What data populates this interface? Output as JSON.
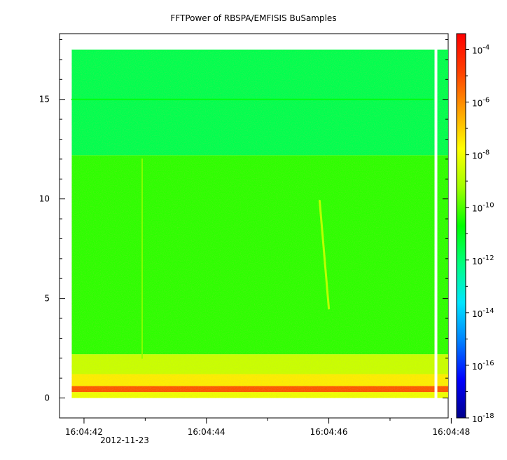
{
  "chart_data": {
    "type": "heatmap",
    "title": "FFTPower of RBSPA/EMFISIS  BuSamples",
    "xlabel": "",
    "ylabel": "",
    "date_label": "2012-11-23",
    "x_ticks": [
      "16:04:42",
      "16:04:44",
      "16:04:46",
      "16:04:48"
    ],
    "x_range_seconds": [
      41.6,
      47.95
    ],
    "data_x_range_seconds": [
      41.8,
      47.95
    ],
    "gap_x_seconds": 47.75,
    "y_ticks": [
      0,
      5,
      10,
      15
    ],
    "ylim": [
      -1,
      18.3
    ],
    "data_y_range": [
      0,
      17.5
    ],
    "colorbar": {
      "scale": "log",
      "range_exponent": [
        -18,
        -3.4
      ],
      "tick_labels": [
        {
          "base": "10",
          "exp": "-4",
          "value": -4
        },
        {
          "base": "10",
          "exp": "-6",
          "value": -6
        },
        {
          "base": "10",
          "exp": "-8",
          "value": -8
        },
        {
          "base": "10",
          "exp": "-10",
          "value": -10
        },
        {
          "base": "10",
          "exp": "-12",
          "value": -12
        },
        {
          "base": "10",
          "exp": "-14",
          "value": -14
        },
        {
          "base": "10",
          "exp": "-16",
          "value": -16
        },
        {
          "base": "10",
          "exp": "-18",
          "value": -18
        }
      ]
    },
    "spectral_bands": [
      {
        "y_from": 0,
        "y_to": 0.3,
        "power_exp": -8.0
      },
      {
        "y_from": 0.3,
        "y_to": 0.6,
        "power_exp": -5.2
      },
      {
        "y_from": 0.6,
        "y_to": 1.2,
        "power_exp": -7.5
      },
      {
        "y_from": 1.2,
        "y_to": 2.2,
        "power_exp": -8.6
      },
      {
        "y_from": 2.2,
        "y_to": 12.2,
        "power_exp": -10.3
      },
      {
        "y_from": 12.2,
        "y_to": 17.5,
        "power_exp": -11.6
      }
    ],
    "features": [
      {
        "kind": "line",
        "x0": 42.95,
        "y0": 2.0,
        "x1": 42.95,
        "y1": 12.0,
        "power_exp": -9.4
      },
      {
        "kind": "line",
        "x0": 45.85,
        "y0": 9.9,
        "x1": 46.0,
        "y1": 4.5,
        "power_exp": -8.6
      },
      {
        "kind": "line",
        "x0": 41.8,
        "y0": 15.0,
        "x1": 47.7,
        "y1": 15.0,
        "power_exp": -10.8
      }
    ],
    "colors": {
      "colormap": [
        "#00008b",
        "#0000ff",
        "#0080ff",
        "#00e5ff",
        "#00ff80",
        "#00ff00",
        "#a0ff00",
        "#ffff00",
        "#ffa000",
        "#ff4000",
        "#ff0000"
      ]
    }
  }
}
